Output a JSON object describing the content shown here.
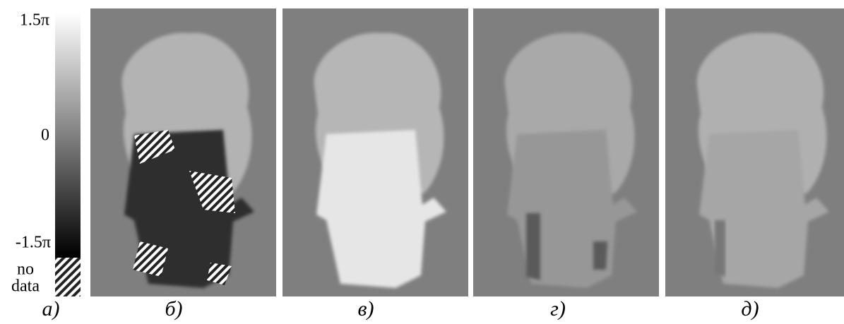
{
  "colorbar": {
    "top_label": "1.5π",
    "middle_label": "0",
    "bottom_label": "-1.5π",
    "no_data_label": [
      "no",
      "data"
    ]
  },
  "panels": [
    {
      "label": "а)"
    },
    {
      "label": "б)"
    },
    {
      "label": "в)"
    },
    {
      "label": "г)"
    },
    {
      "label": "д)"
    }
  ]
}
